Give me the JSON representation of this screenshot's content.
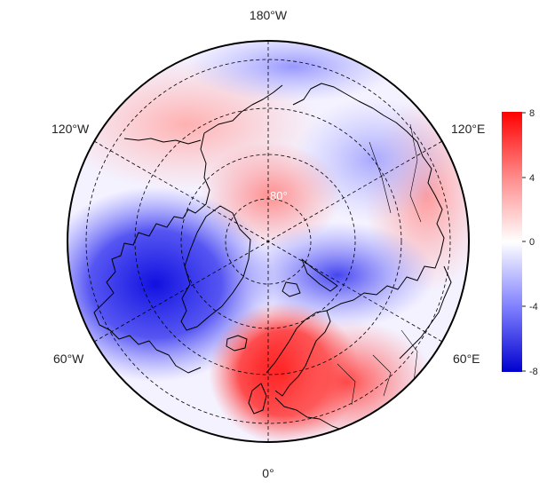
{
  "map": {
    "projection": "north-polar-stereographic",
    "longitude_labels": {
      "top": "180°W",
      "bottom": "0°",
      "upper_left": "120°W",
      "upper_right": "120°E",
      "lower_left": "60°W",
      "lower_right": "60°E"
    },
    "latitude_label": "80°",
    "field_anomalies": [
      {
        "region": "north-pole",
        "sign": "positive",
        "value": 4
      },
      {
        "region": "canada-greenland",
        "sign": "negative",
        "value": -7
      },
      {
        "region": "barents-siberia",
        "sign": "negative",
        "value": -4
      },
      {
        "region": "north-atlantic-scandinavia",
        "sign": "positive",
        "value": 7
      },
      {
        "region": "europe",
        "sign": "positive",
        "value": 5
      },
      {
        "region": "pacific-alaska",
        "sign": "positive",
        "value": 2
      },
      {
        "region": "east-asia",
        "sign": "positive",
        "value": 3
      },
      {
        "region": "bering-sea",
        "sign": "negative",
        "value": -2
      }
    ]
  },
  "colorbar": {
    "ticks": [
      "8",
      "4",
      "0",
      "-4",
      "-8"
    ],
    "range": [
      -8,
      8
    ],
    "colors": {
      "max": "#ff0000",
      "mid": "#ffffff",
      "min": "#0000d0"
    }
  },
  "colors": {
    "coastline": "#000000",
    "grid": "#000000",
    "boundary": "#000000"
  }
}
